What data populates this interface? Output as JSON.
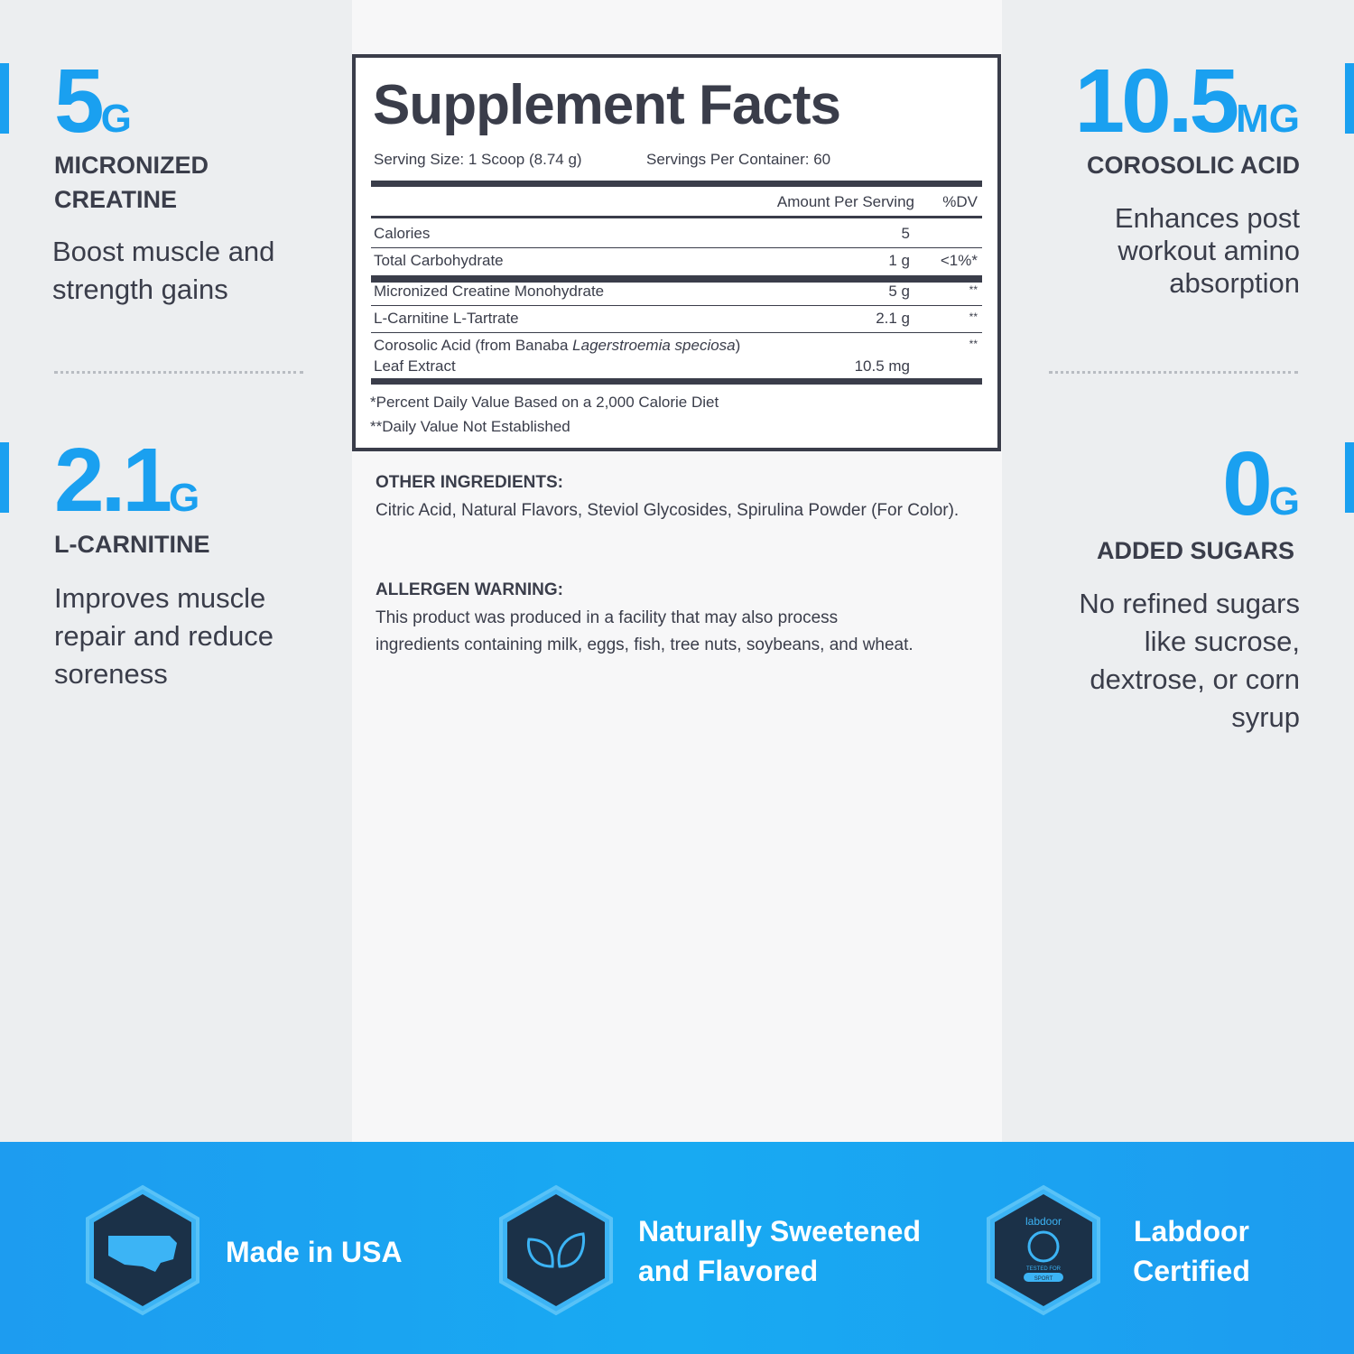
{
  "features": [
    {
      "number": "5",
      "unit": "G",
      "label": "MICRONIZED CREATINE",
      "description": "Boost muscle and strength gains"
    },
    {
      "number": "2.1",
      "unit": "G",
      "label": "L-CARNITINE",
      "description": "Improves muscle repair and reduce soreness"
    },
    {
      "number": "10.5",
      "unit": "MG",
      "label": "COROSOLIC ACID",
      "description": "Enhances post workout amino absorption"
    },
    {
      "number": "0",
      "unit": "G",
      "label": "ADDED SUGARS",
      "description": "No refined sugars like sucrose, dextrose, or corn syrup"
    }
  ],
  "facts": {
    "title": "Supplement Facts",
    "serving_size": "Serving Size: 1 Scoop (8.74 g)",
    "servings_per_container": "Servings Per Container: 60",
    "header": {
      "amount": "Amount Per Serving",
      "dv": "%DV"
    },
    "rows": [
      {
        "name": "Calories",
        "amount": "5"
      },
      {
        "name": "Total Carbohydrate",
        "amount": "1 g",
        "dv": "<1%*"
      },
      {
        "name": "Micronized Creatine Monohydrate",
        "amount": "5 g",
        "dv": "**"
      },
      {
        "name": "L-Carnitine L-Tartrate",
        "amount": "2.1 g",
        "dv": "**"
      },
      {
        "name_parts": [
          "Corosolic Acid (from Banaba ",
          "Lagerstroemia speciosa",
          ")",
          "Leaf Extract"
        ],
        "amount": "10.5 mg",
        "dv": "**"
      }
    ],
    "footnotes": [
      "*Percent Daily Value Based on a 2,000 Calorie Diet",
      "**Daily Value Not Established"
    ]
  },
  "other_ingredients": {
    "heading": "OTHER INGREDIENTS:",
    "text": "Citric Acid, Natural Flavors, Steviol Glycosides, Spirulina Powder (For Color)."
  },
  "allergen_warning": {
    "heading": "ALLERGEN WARNING:",
    "text": "This product was produced in a facility that may also process ingredients containing milk, eggs, fish, tree nuts, soybeans, and wheat."
  },
  "badges": [
    {
      "label": "Made in USA"
    },
    {
      "label": "Naturally Sweetened and Flavored"
    },
    {
      "label": "Labdoor Certified",
      "logo": {
        "brand": "labdoor",
        "line1": "TESTED FOR",
        "line2": "SPORT"
      }
    }
  ]
}
